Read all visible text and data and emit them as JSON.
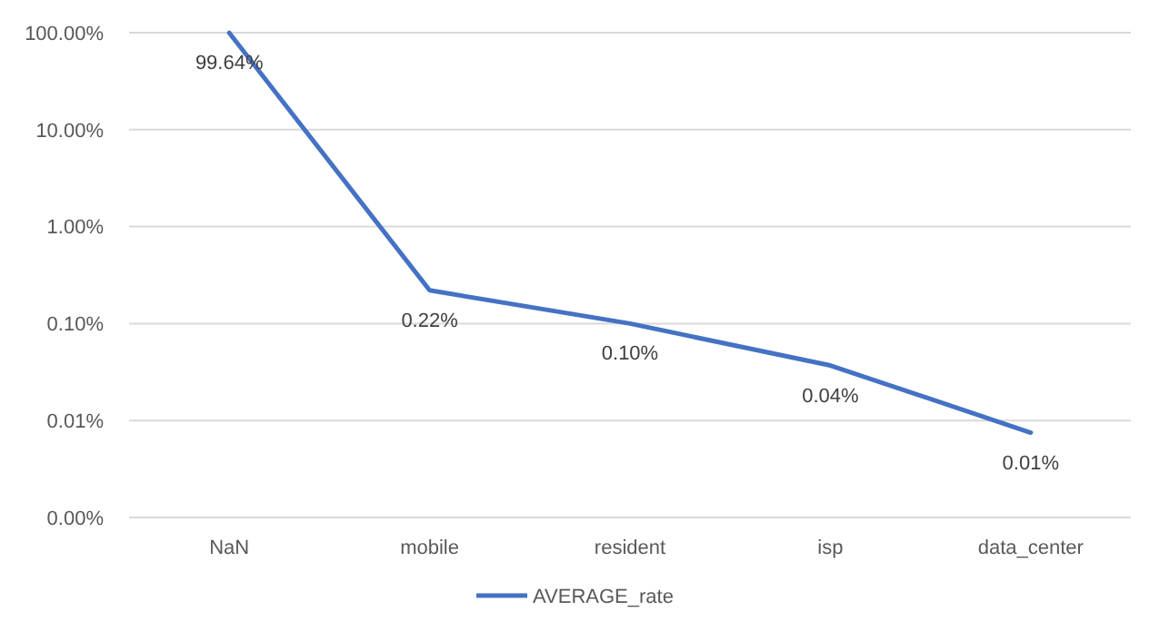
{
  "chart_data": {
    "type": "line",
    "categories": [
      "NaN",
      "mobile",
      "resident",
      "isp",
      "data_center"
    ],
    "series": [
      {
        "name": "AVERAGE_rate",
        "color": "#4472c4",
        "values": [
          99.64,
          0.22,
          0.1,
          0.037,
          0.0075
        ],
        "value_labels": [
          "99.64%",
          "0.22%",
          "0.10%",
          "0.04%",
          "0.01%"
        ]
      }
    ],
    "log": "y",
    "ylim": [
      0.001,
      100
    ],
    "yticks": [
      {
        "value": 0.001,
        "label": "0.00%"
      },
      {
        "value": 0.01,
        "label": "0.01%"
      },
      {
        "value": 0.1,
        "label": "0.10%"
      },
      {
        "value": 1,
        "label": "1.00%"
      },
      {
        "value": 10,
        "label": "10.00%"
      },
      {
        "value": 100,
        "label": "100.00%"
      }
    ],
    "grid": "y",
    "legend": "bottom",
    "marker": "none",
    "line_style": "solid"
  }
}
